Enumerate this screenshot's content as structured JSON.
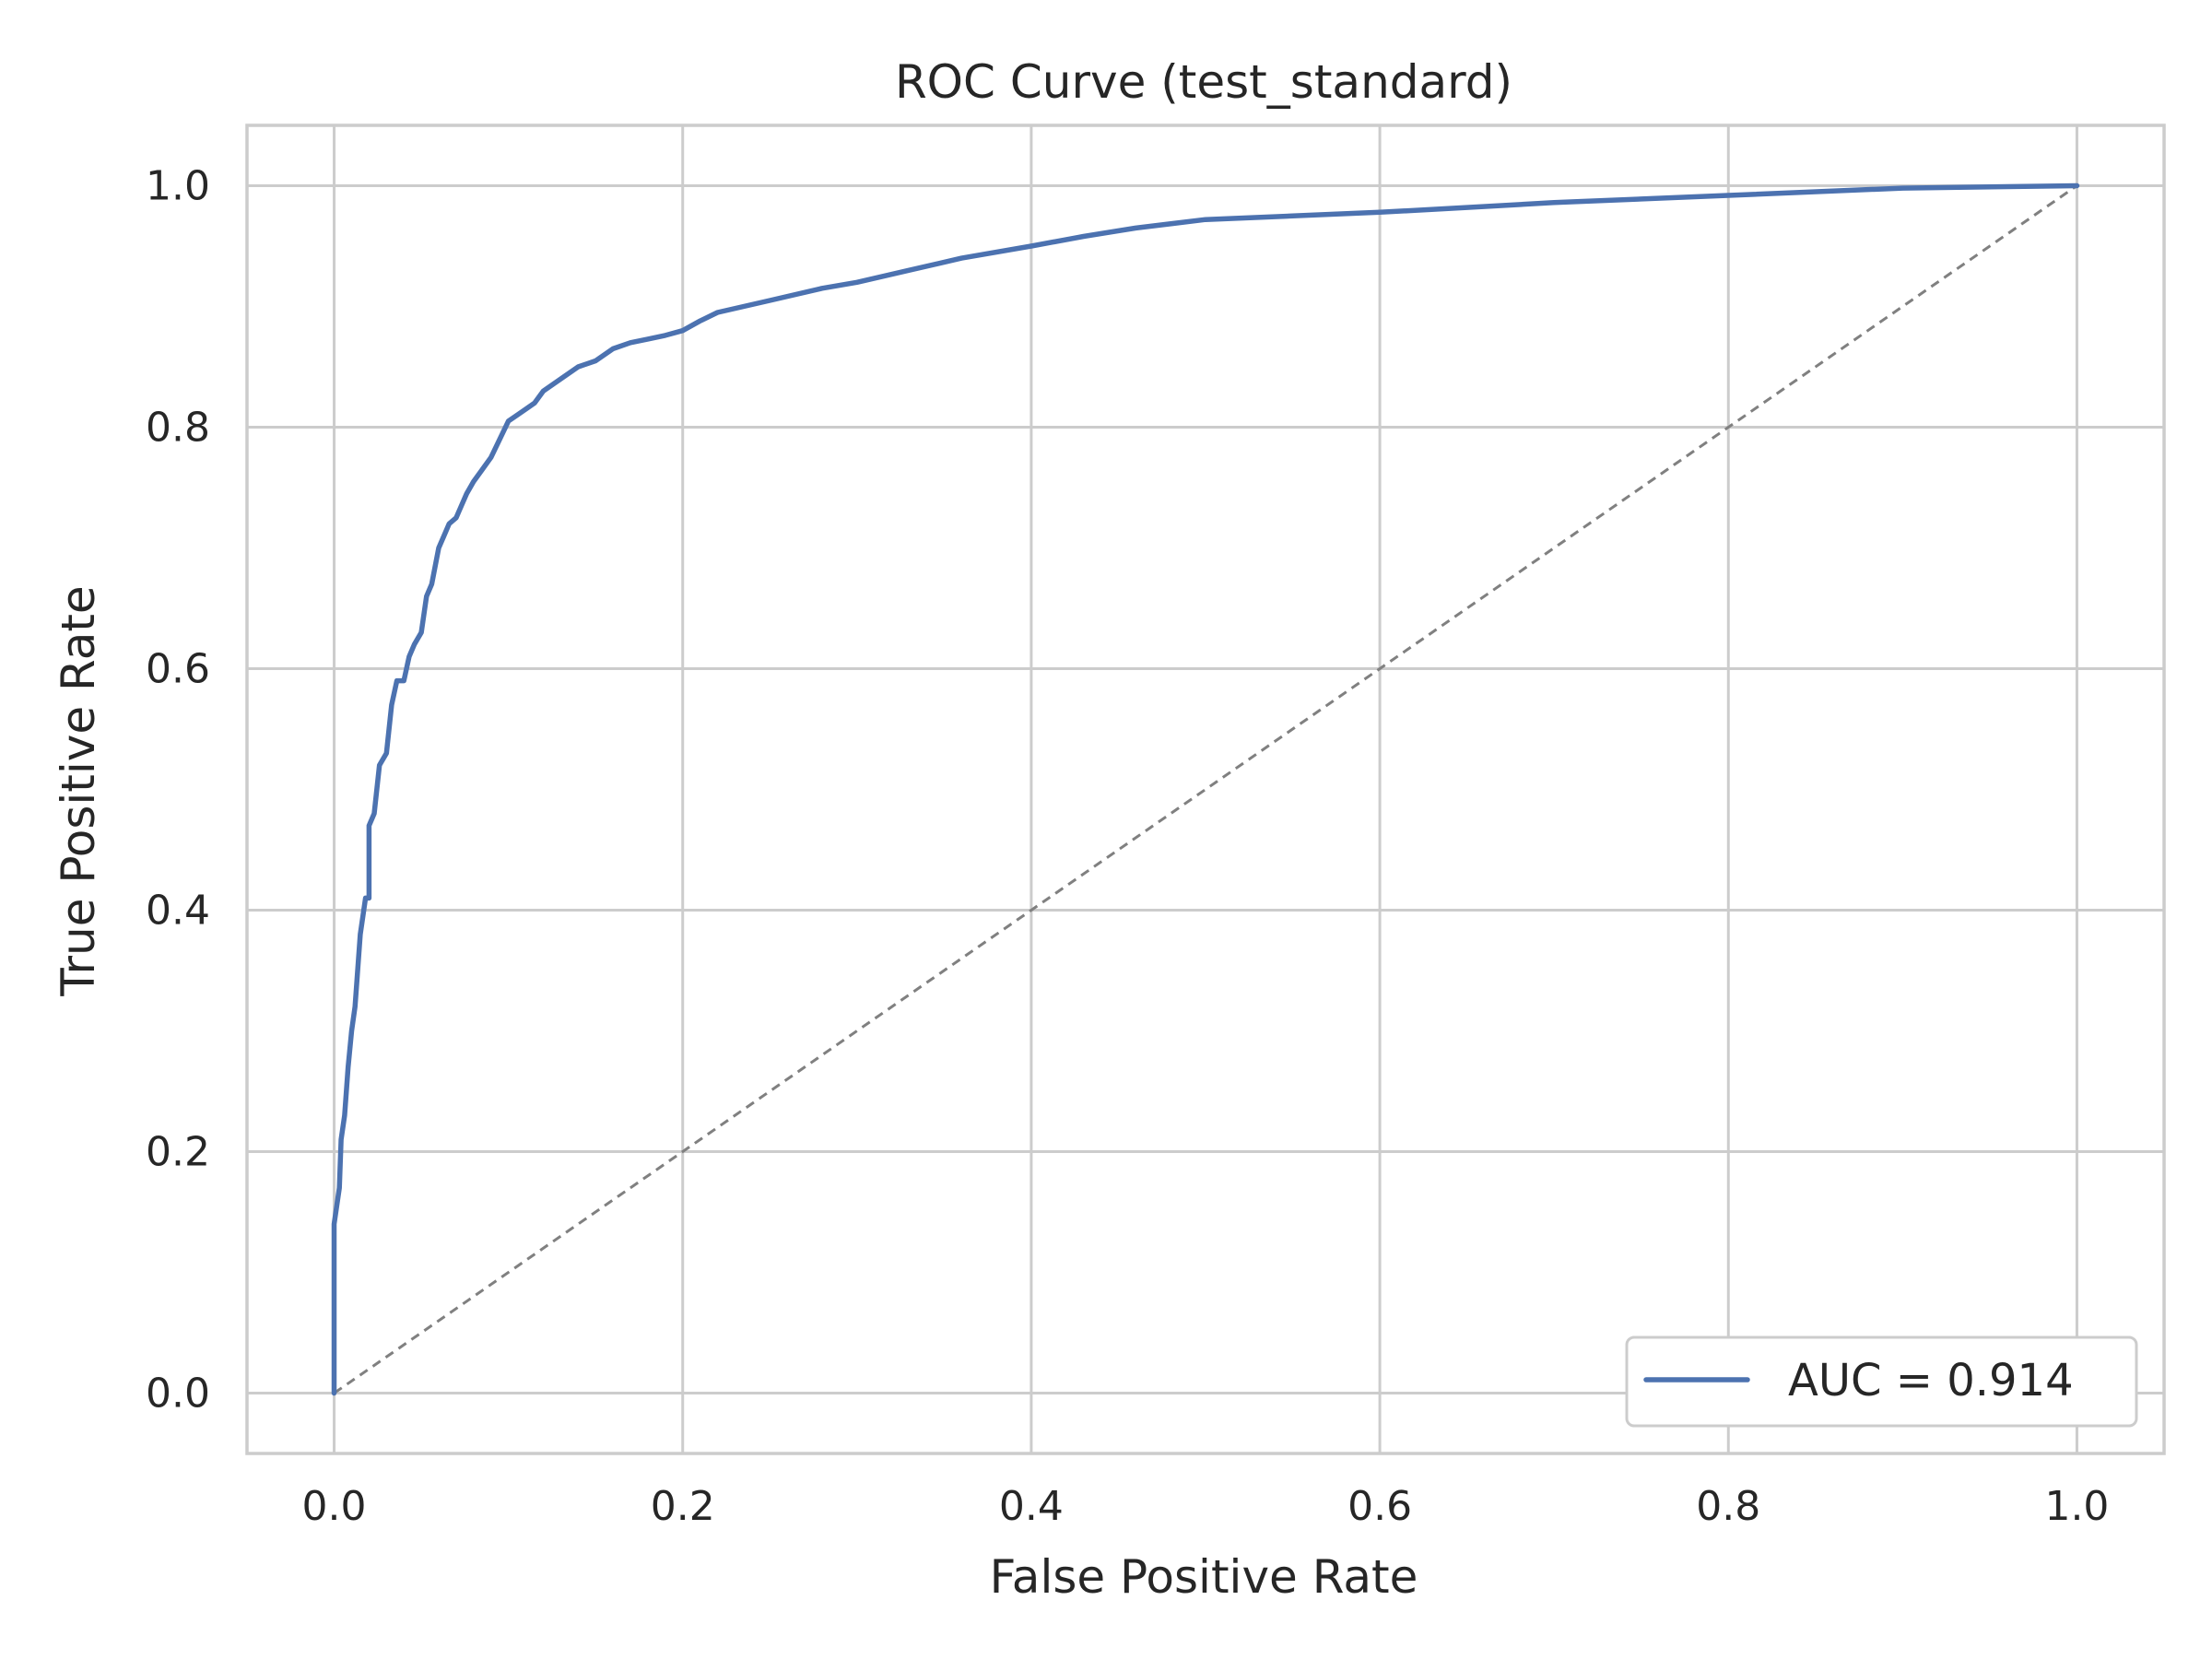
{
  "chart_data": {
    "type": "line",
    "title": "ROC Curve (test_standard)",
    "xlabel": "False Positive Rate",
    "ylabel": "True Positive Rate",
    "xlim": [
      -0.05,
      1.05
    ],
    "ylim": [
      -0.05,
      1.05
    ],
    "xticks": [
      0.0,
      0.2,
      0.4,
      0.6,
      0.8,
      1.0
    ],
    "yticks": [
      0.0,
      0.2,
      0.4,
      0.6,
      0.8,
      1.0
    ],
    "tick_labels_x": [
      "0.0",
      "0.2",
      "0.4",
      "0.6",
      "0.8",
      "1.0"
    ],
    "tick_labels_y": [
      "0.0",
      "0.2",
      "0.4",
      "0.6",
      "0.8",
      "1.0"
    ],
    "grid": true,
    "legend_position": "lower-right",
    "series": [
      {
        "name": "AUC = 0.914",
        "color": "#4c72b0",
        "x": [
          0.0,
          0.0,
          0.003,
          0.004,
          0.006,
          0.008,
          0.01,
          0.012,
          0.015,
          0.018,
          0.02,
          0.02,
          0.023,
          0.026,
          0.03,
          0.033,
          0.036,
          0.04,
          0.043,
          0.046,
          0.05,
          0.053,
          0.056,
          0.06,
          0.063,
          0.066,
          0.07,
          0.073,
          0.076,
          0.08,
          0.085,
          0.09,
          0.095,
          0.1,
          0.105,
          0.11,
          0.115,
          0.12,
          0.13,
          0.14,
          0.15,
          0.16,
          0.17,
          0.18,
          0.19,
          0.2,
          0.21,
          0.22,
          0.25,
          0.28,
          0.3,
          0.33,
          0.36,
          0.4,
          0.43,
          0.46,
          0.5,
          0.55,
          0.6,
          0.65,
          0.7,
          0.8,
          0.9,
          1.0
        ],
        "y": [
          0.0,
          0.14,
          0.17,
          0.21,
          0.23,
          0.27,
          0.3,
          0.32,
          0.38,
          0.41,
          0.41,
          0.47,
          0.48,
          0.52,
          0.53,
          0.57,
          0.59,
          0.59,
          0.61,
          0.62,
          0.63,
          0.66,
          0.67,
          0.7,
          0.71,
          0.72,
          0.725,
          0.735,
          0.745,
          0.755,
          0.765,
          0.775,
          0.79,
          0.805,
          0.81,
          0.815,
          0.82,
          0.83,
          0.84,
          0.85,
          0.855,
          0.865,
          0.87,
          0.873,
          0.876,
          0.88,
          0.888,
          0.895,
          0.905,
          0.915,
          0.92,
          0.93,
          0.94,
          0.95,
          0.958,
          0.965,
          0.972,
          0.975,
          0.978,
          0.982,
          0.986,
          0.992,
          0.998,
          1.0
        ]
      }
    ],
    "reference_line": {
      "x": [
        0.0,
        1.0
      ],
      "y": [
        0.0,
        1.0
      ],
      "color": "#808080",
      "style": "dashed"
    }
  }
}
